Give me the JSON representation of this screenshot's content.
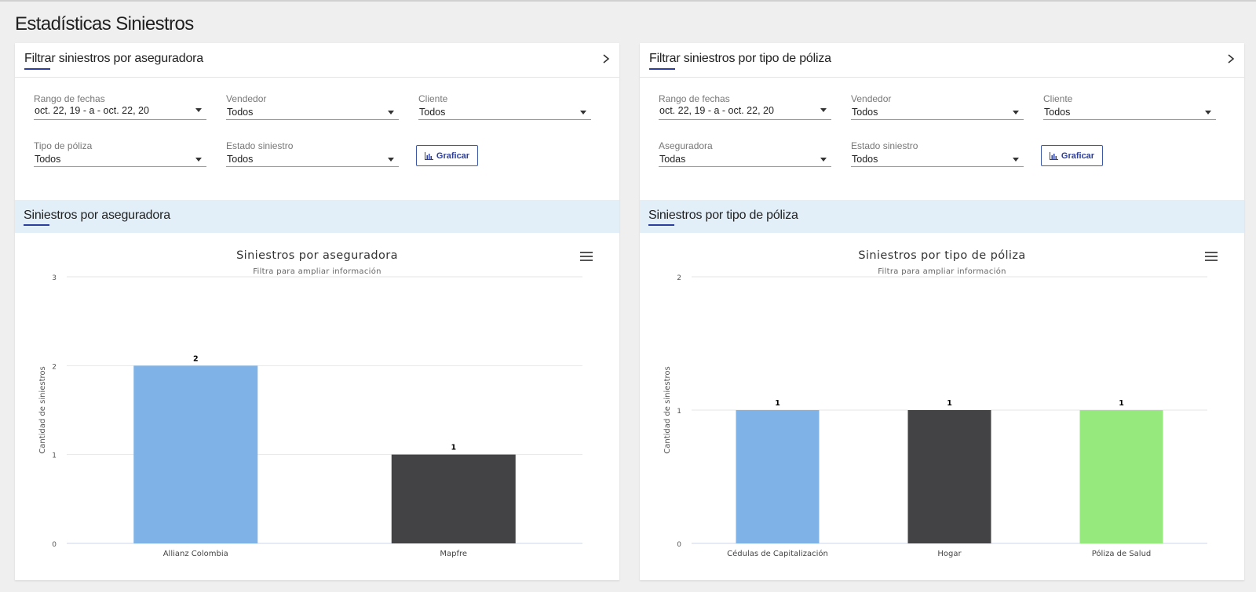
{
  "page_title": "Estadísticas Siniestros",
  "left_panel": {
    "header_title": "Filtrar siniestros por aseguradora",
    "filters": {
      "rango": {
        "label": "Rango de fechas",
        "value": "oct. 22, 19 - a - oct. 22, 20"
      },
      "vendedor": {
        "label": "Vendedor",
        "value": "Todos"
      },
      "cliente": {
        "label": "Cliente",
        "value": "Todos"
      },
      "tipo_poliza": {
        "label": "Tipo de póliza",
        "value": "Todos"
      },
      "estado": {
        "label": "Estado siniestro",
        "value": "Todos"
      }
    },
    "button_label": "Graficar",
    "section_title": "Siniestros por aseguradora"
  },
  "right_panel": {
    "header_title": "Filtrar siniestros por tipo de póliza",
    "filters": {
      "rango": {
        "label": "Rango de fechas",
        "value": "oct. 22, 19 - a - oct. 22, 20"
      },
      "vendedor": {
        "label": "Vendedor",
        "value": "Todos"
      },
      "cliente": {
        "label": "Cliente",
        "value": "Todos"
      },
      "aseguradora": {
        "label": "Aseguradora",
        "value": "Todas"
      },
      "estado": {
        "label": "Estado siniestro",
        "value": "Todos"
      }
    },
    "button_label": "Graficar",
    "section_title": "Siniestros por tipo de póliza"
  },
  "colors": {
    "accent": "#2c3e9c",
    "section_bg": "#e2eff9"
  },
  "chart_data": [
    {
      "type": "bar",
      "title": "Siniestros por aseguradora",
      "subtitle": "Filtra para ampliar información",
      "ylabel": "Cantidad de siniestros",
      "ylim": [
        0,
        3
      ],
      "yticks": [
        "0",
        "1",
        "2",
        "3"
      ],
      "categories": [
        "Allianz Colombia",
        "Mapfre"
      ],
      "values": [
        2,
        1
      ],
      "data_labels": [
        "2",
        "1"
      ],
      "colors": [
        "#7fb3e8",
        "#434346"
      ],
      "grid": true
    },
    {
      "type": "bar",
      "title": "Siniestros por tipo de póliza",
      "subtitle": "Filtra para ampliar información",
      "ylabel": "Cantidad de siniestros",
      "ylim": [
        0,
        2
      ],
      "yticks": [
        "0",
        "1",
        "2"
      ],
      "categories": [
        "Cédulas de Capitalización",
        "Hogar",
        "Póliza de Salud"
      ],
      "values": [
        1,
        1,
        1
      ],
      "data_labels": [
        "1",
        "1",
        "1"
      ],
      "colors": [
        "#7fb3e8",
        "#434346",
        "#95e97d"
      ],
      "grid": true
    }
  ]
}
